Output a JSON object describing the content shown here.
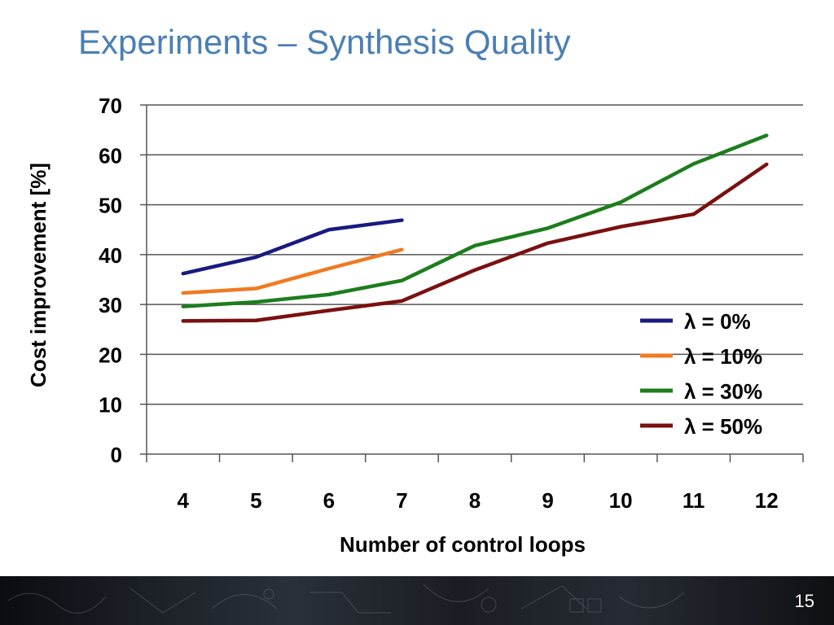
{
  "slide": {
    "title": "Experiments – Synthesis Quality",
    "page_number": "15"
  },
  "chart_data": {
    "type": "line",
    "title": "",
    "xlabel": "Number of control loops",
    "ylabel": "Cost improvement [%]",
    "categories": [
      "4",
      "5",
      "6",
      "7",
      "8",
      "9",
      "10",
      "11",
      "12"
    ],
    "ylim": [
      0,
      70
    ],
    "yticks": [
      0,
      10,
      20,
      30,
      40,
      50,
      60,
      70
    ],
    "grid": true,
    "legend_position": "right",
    "series": [
      {
        "name": "λ = 0%",
        "color": "#1a1a80",
        "values": [
          36.2,
          39.5,
          45.0,
          46.9,
          null,
          null,
          null,
          null,
          null
        ]
      },
      {
        "name": "λ = 10%",
        "color": "#f07a22",
        "values": [
          32.3,
          33.2,
          37.2,
          41.0,
          null,
          null,
          null,
          null,
          null
        ]
      },
      {
        "name": "λ = 30%",
        "color": "#1d7d1d",
        "values": [
          29.6,
          30.5,
          32.0,
          34.8,
          41.8,
          45.3,
          50.5,
          58.2,
          63.9
        ]
      },
      {
        "name": "λ = 50%",
        "color": "#7a1010",
        "values": [
          26.7,
          26.8,
          28.8,
          30.7,
          36.9,
          42.3,
          45.6,
          48.1,
          58.1
        ]
      }
    ]
  }
}
